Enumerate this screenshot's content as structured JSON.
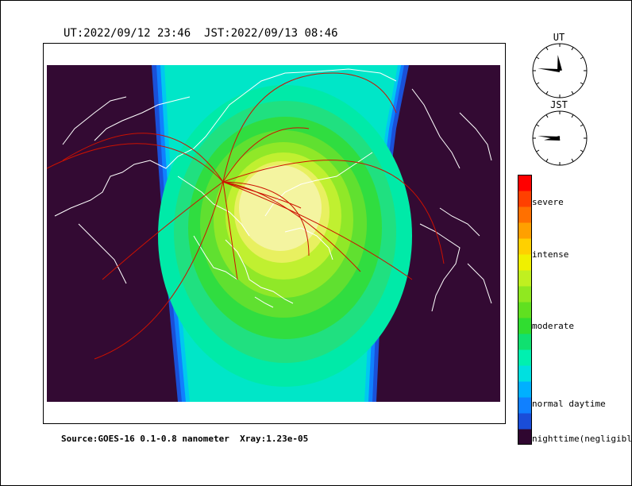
{
  "header": {
    "ut": "UT:2022/09/12 23:46",
    "jst": "JST:2022/09/13 08:46"
  },
  "source_line": "Source:GOES-16 0.1-0.8 nanometer  Xray:1.23e-05",
  "clocks": [
    {
      "label": "UT",
      "hour": 23,
      "minute": 46
    },
    {
      "label": "JST",
      "hour": 8,
      "minute": 46
    }
  ],
  "colorbar": {
    "labels": [
      {
        "text": "severe",
        "color": "#ff5a00"
      },
      {
        "text": "intense",
        "color": "#ffff00"
      },
      {
        "text": "moderate",
        "color": "#22dd22"
      },
      {
        "text": "normal daytime",
        "color": "#0090ff"
      },
      {
        "text": "nighttime(negligible)",
        "color": "#3a0a3c"
      }
    ],
    "stops": [
      "#2f0630",
      "#1a4dd8",
      "#1080ff",
      "#00b0ff",
      "#00e0e0",
      "#00f0b0",
      "#10e070",
      "#30dd30",
      "#60e020",
      "#90e820",
      "#c0f020",
      "#f0f000",
      "#ffd000",
      "#ffa000",
      "#ff7000",
      "#ff4000",
      "#ff0000"
    ]
  },
  "map": {
    "night_color": "#330a33",
    "coast_color": "#ffffff",
    "path_color": "#cc1100"
  }
}
